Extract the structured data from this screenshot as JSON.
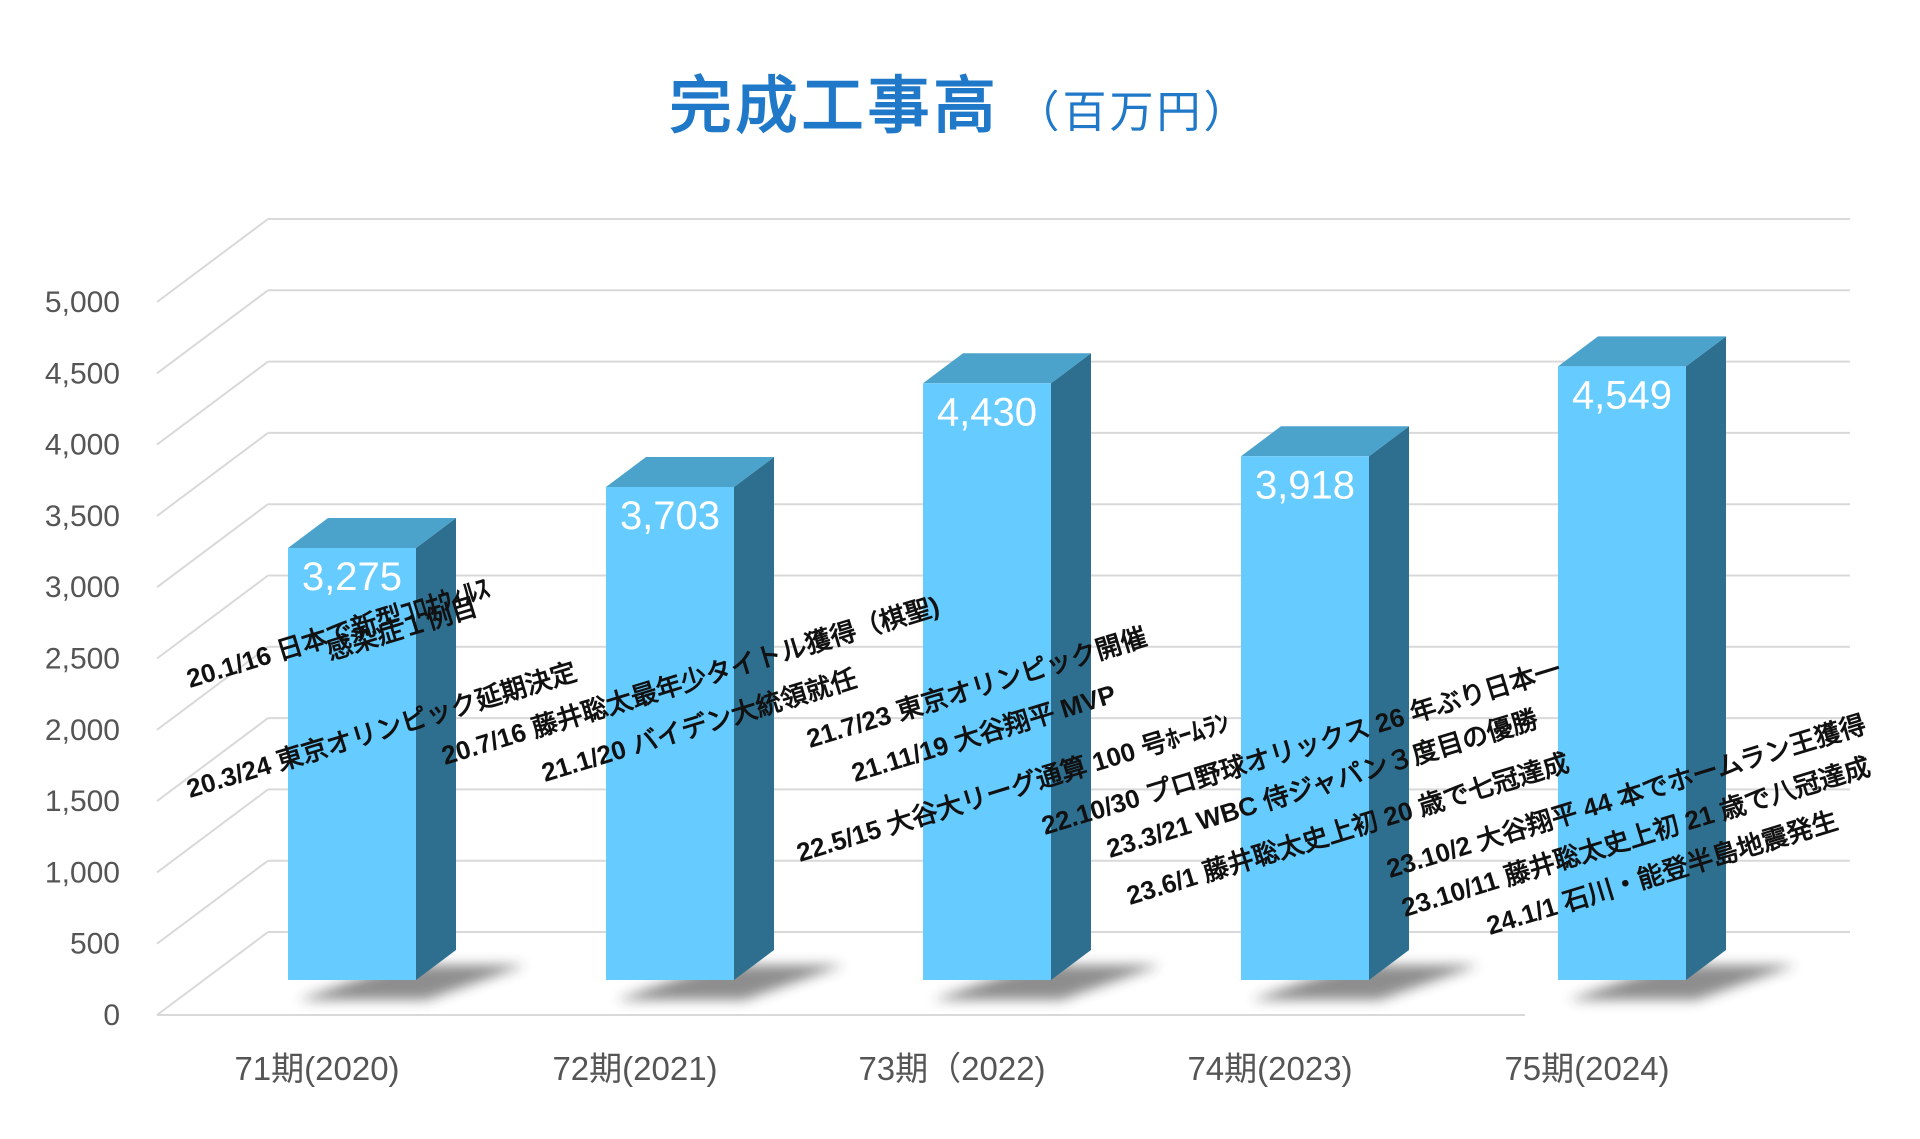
{
  "chart_data": {
    "type": "bar",
    "title": "完成工事高",
    "unit": "（百万円）",
    "categories": [
      "71期(2020)",
      "72期(2021)",
      "73期（2022)",
      "74期(2023)",
      "75期(2024)"
    ],
    "values": [
      3275,
      3703,
      4430,
      3918,
      4549
    ],
    "value_labels": [
      "3,275",
      "3,703",
      "4,430",
      "3,918",
      "4,549"
    ],
    "yticks": [
      "0",
      "500",
      "1,000",
      "1,500",
      "2,000",
      "2,500",
      "3,000",
      "3,500",
      "4,000",
      "4,500",
      "5,000"
    ],
    "ylim": [
      0,
      5000
    ],
    "grid": true,
    "style": "3d-column",
    "colors": {
      "bar_front": "#66ccff",
      "bar_top": "#4ba3cc",
      "bar_side": "#2e6f90",
      "title": "#1f78c8",
      "axis_text": "#555555",
      "grid": "#d9d9d9"
    },
    "annotations": [
      "20.1/16 日本で新型ｺﾛﾅｳｨﾙｽ",
      "感染症１例目",
      "20.3/24 東京オリンピック延期決定",
      "20.7/16 藤井聡太最年少タイトル獲得（棋聖)",
      "21.1/20 バイデン大統領就任",
      "21.7/23 東京オリンピック開催",
      "21.11/19 大谷翔平 MVP",
      "22.5/15 大谷大リーグ通算 100 号ﾎｰﾑﾗﾝ",
      "22.10/30 プロ野球オリックス 26 年ぶり日本一",
      "23.3/21 WBC 侍ジャパン３度目の優勝",
      "23.6/1 藤井聡太史上初 20 歳で七冠達成",
      "23.10/2 大谷翔平 44 本でホームラン王獲得",
      "23.10/11 藤井聡太史上初 21 歳で八冠達成",
      "24.1/1 石川・能登半島地震発生"
    ]
  }
}
